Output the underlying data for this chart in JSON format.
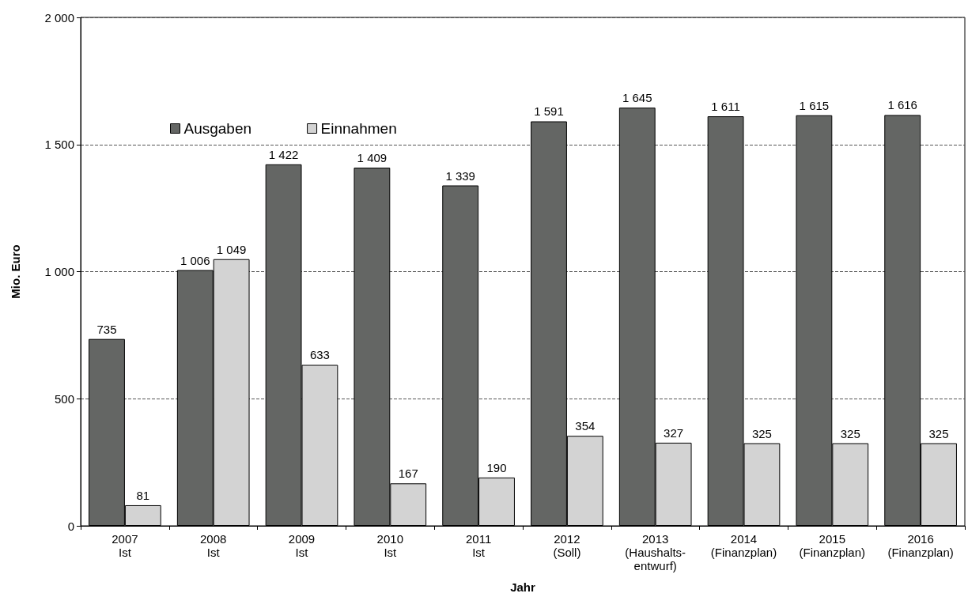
{
  "chart_data": {
    "type": "bar",
    "xlabel": "Jahr",
    "ylabel": "Mio. Euro",
    "categories": [
      "2007\nIst",
      "2008\nIst",
      "2009\nIst",
      "2010\nIst",
      "2011\nIst",
      "2012\n(Soll)",
      "2013\n(Haushalts-\nentwurf)",
      "2014\n(Finanzplan)",
      "2015\n(Finanzplan)",
      "2016\n(Finanzplan)"
    ],
    "series": [
      {
        "name": "Ausgaben",
        "color": "#646664",
        "values": [
          735,
          1006,
          1422,
          1409,
          1339,
          1591,
          1645,
          1611,
          1615,
          1616
        ],
        "value_labels": [
          "735",
          "1 006",
          "1 422",
          "1 409",
          "1 339",
          "1 591",
          "1 645",
          "1 611",
          "1 615",
          "1 616"
        ]
      },
      {
        "name": "Einnahmen",
        "color": "#d3d3d3",
        "values": [
          81,
          1049,
          633,
          167,
          190,
          354,
          327,
          325,
          325,
          325
        ],
        "value_labels": [
          "81",
          "1 049",
          "633",
          "167",
          "190",
          "354",
          "327",
          "325",
          "325",
          "325"
        ]
      }
    ],
    "ylim": [
      0,
      2000
    ],
    "yticks": [
      0,
      500,
      {
        "value": 1000,
        "label": "1 000"
      },
      {
        "value": 1500,
        "label": "1 500"
      },
      {
        "value": 2000,
        "label": "2 000"
      }
    ],
    "grid": "y",
    "line_style": "dashed",
    "legend": "top left"
  }
}
